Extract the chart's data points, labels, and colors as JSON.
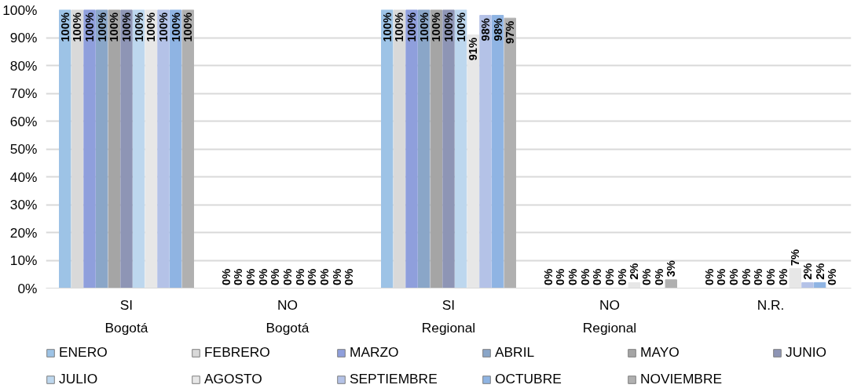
{
  "chart_data": {
    "type": "bar",
    "categories": [
      "SI\nBogotá",
      "NO\nBogotá",
      "SI\nRegional",
      "NO\nRegional",
      "N.R."
    ],
    "ylim": [
      0,
      100
    ],
    "yticks": [
      {
        "value": 0,
        "label": "0%"
      },
      {
        "value": 10,
        "label": "10%"
      },
      {
        "value": 20,
        "label": "20%"
      },
      {
        "value": 30,
        "label": "30%"
      },
      {
        "value": 40,
        "label": "40%"
      },
      {
        "value": 50,
        "label": "50%"
      },
      {
        "value": 60,
        "label": "60%"
      },
      {
        "value": 70,
        "label": "70%"
      },
      {
        "value": 80,
        "label": "80%"
      },
      {
        "value": 90,
        "label": "90%"
      },
      {
        "value": 100,
        "label": "100%"
      }
    ],
    "grid": "y",
    "legend": "bottom",
    "series": [
      {
        "name": "ENERO",
        "color": "#9dc3e6",
        "values": [
          100,
          0,
          100,
          0,
          0
        ],
        "value_labels": [
          "100%",
          "0%",
          "100%",
          "0%",
          "0%"
        ]
      },
      {
        "name": "FEBRERO",
        "color": "#d9d9d9",
        "values": [
          100,
          0,
          100,
          0,
          0
        ],
        "value_labels": [
          "100%",
          "0%",
          "100%",
          "0%",
          "0%"
        ]
      },
      {
        "name": "MARZO",
        "color": "#8f9fdc",
        "values": [
          100,
          0,
          100,
          0,
          0
        ],
        "value_labels": [
          "100%",
          "0%",
          "100%",
          "0%",
          "0%"
        ]
      },
      {
        "name": "ABRIL",
        "color": "#8aa6c8",
        "values": [
          100,
          0,
          100,
          0,
          0
        ],
        "value_labels": [
          "100%",
          "0%",
          "100%",
          "0%",
          "0%"
        ]
      },
      {
        "name": "MAYO",
        "color": "#a5a5a5",
        "values": [
          100,
          0,
          100,
          0,
          0
        ],
        "value_labels": [
          "100%",
          "0%",
          "100%",
          "0%",
          "0%"
        ]
      },
      {
        "name": "JUNIO",
        "color": "#8e95b5",
        "values": [
          100,
          0,
          100,
          0,
          0
        ],
        "value_labels": [
          "100%",
          "0%",
          "100%",
          "0%",
          "0%"
        ]
      },
      {
        "name": "JULIO",
        "color": "#bdd7ee",
        "values": [
          100,
          0,
          100,
          0,
          0
        ],
        "value_labels": [
          "100%",
          "0%",
          "100%",
          "0%",
          "0%"
        ]
      },
      {
        "name": "AGOSTO",
        "color": "#e7e7e7",
        "values": [
          100,
          0,
          91,
          2,
          7
        ],
        "value_labels": [
          "100%",
          "0%",
          "91%",
          "2%",
          "7%"
        ]
      },
      {
        "name": "SEPTIEMBRE",
        "color": "#b4c2e7",
        "values": [
          100,
          0,
          98,
          0,
          2
        ],
        "value_labels": [
          "100%",
          "0%",
          "98%",
          "0%",
          "2%"
        ]
      },
      {
        "name": "OCTUBRE",
        "color": "#8fb4e3",
        "values": [
          100,
          0,
          98,
          0,
          2
        ],
        "value_labels": [
          "100%",
          "0%",
          "98%",
          "0%",
          "2%"
        ]
      },
      {
        "name": "NOVIEMBRE",
        "color": "#b0b0b0",
        "values": [
          100,
          0,
          97,
          3,
          0
        ],
        "value_labels": [
          "100%",
          "0%",
          "97%",
          "3%",
          "0%"
        ]
      }
    ]
  }
}
